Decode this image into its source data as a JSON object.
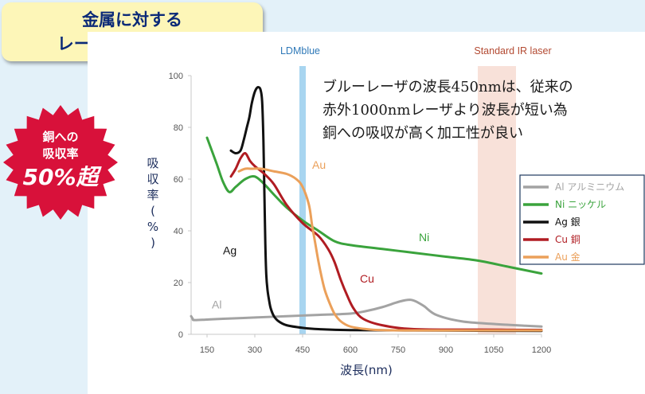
{
  "title": {
    "line1": "金属に対する",
    "line2": "レーザ波長の吸収率"
  },
  "badge": {
    "line1": "銅への",
    "line2": "吸収率",
    "line3": "50%超",
    "color": "#d8113a"
  },
  "annotation": [
    "ブルーレーザの波長450nmは、従来の",
    "赤外1000nmレーザより波長が短い為",
    "銅への吸収が高く加工性が良い"
  ],
  "bands": [
    {
      "label": "LDMblue",
      "center_nm": 450,
      "label_color": "#2f79b8",
      "color": "#9fd0ee"
    },
    {
      "label": "Standard IR laser",
      "from_nm": 1000,
      "to_nm": 1120,
      "label_color": "#b34a32",
      "color": "#f7dcd2"
    }
  ],
  "chart_data": {
    "type": "line",
    "xlabel": "波長(nm)",
    "ylabel": "吸収率(%)",
    "xlim": [
      100,
      1200
    ],
    "ylim": [
      0,
      100
    ],
    "xticks": [
      150,
      300,
      450,
      600,
      750,
      900,
      1050,
      1200
    ],
    "yticks": [
      0,
      20,
      40,
      60,
      80,
      100
    ],
    "series": [
      {
        "name": "Al",
        "legend": "Al アルミニウム",
        "color": "#a3a3a3",
        "curve_label": "Al",
        "x": [
          100,
          105,
          110,
          150,
          200,
          300,
          400,
          500,
          600,
          650,
          700,
          750,
          780,
          800,
          830,
          870,
          950,
          1050,
          1150,
          1200
        ],
        "y": [
          7,
          6,
          5.5,
          5.7,
          6,
          6.5,
          7,
          7.5,
          8,
          9,
          10.5,
          12.5,
          13.3,
          13,
          11,
          7.5,
          5,
          4,
          3.3,
          3
        ]
      },
      {
        "name": "Ni",
        "legend": "Ni ニッケル",
        "color": "#3aa33c",
        "curve_label": "Ni",
        "x": [
          150,
          180,
          200,
          220,
          240,
          270,
          300,
          330,
          360,
          400,
          450,
          500,
          550,
          600,
          700,
          800,
          900,
          1000,
          1100,
          1200
        ],
        "y": [
          76,
          66,
          59,
          55,
          57,
          60,
          61,
          58,
          54,
          49,
          44,
          40,
          36,
          34.5,
          33,
          31.5,
          30,
          28.5,
          26,
          23.5
        ]
      },
      {
        "name": "Ag",
        "legend": "Ag 銀",
        "color": "#111111",
        "curve_label": "Ag",
        "x": [
          225,
          240,
          255,
          265,
          275,
          283,
          290,
          298,
          305,
          312,
          318,
          323,
          327,
          330,
          333,
          336,
          340,
          345,
          350,
          360,
          375,
          400,
          450,
          500,
          600,
          800,
          1000,
          1200
        ],
        "y": [
          71,
          70,
          71,
          75,
          80,
          84,
          89,
          93,
          95,
          95.5,
          94.5,
          90,
          75,
          55,
          35,
          23,
          17,
          13,
          10,
          7,
          5,
          3.5,
          2.5,
          2,
          1.6,
          1.5,
          1.4,
          1.3
        ]
      },
      {
        "name": "Cu",
        "legend": "Cu 銅",
        "color": "#b01c22",
        "curve_label": "Cu",
        "x": [
          225,
          240,
          255,
          270,
          285,
          300,
          330,
          360,
          400,
          450,
          500,
          530,
          550,
          570,
          590,
          610,
          640,
          700,
          800,
          1000,
          1200
        ],
        "y": [
          61,
          64,
          68,
          70,
          67,
          65,
          62,
          58,
          50,
          43,
          38,
          33,
          28,
          21,
          15,
          10,
          6,
          3.5,
          2,
          1.8,
          1.7
        ]
      },
      {
        "name": "Au",
        "legend": "Au 金",
        "color": "#eba05a",
        "curve_label": "Au",
        "x": [
          250,
          270,
          290,
          320,
          360,
          400,
          430,
          450,
          470,
          480,
          490,
          500,
          510,
          520,
          535,
          550,
          570,
          600,
          650,
          700,
          800,
          1000,
          1200
        ],
        "y": [
          63,
          64,
          64,
          64,
          63,
          62,
          60,
          57,
          50,
          42,
          35,
          28,
          22,
          17,
          12,
          8,
          5,
          3,
          2,
          1.6,
          1.5,
          1.5,
          1.5
        ]
      }
    ]
  }
}
